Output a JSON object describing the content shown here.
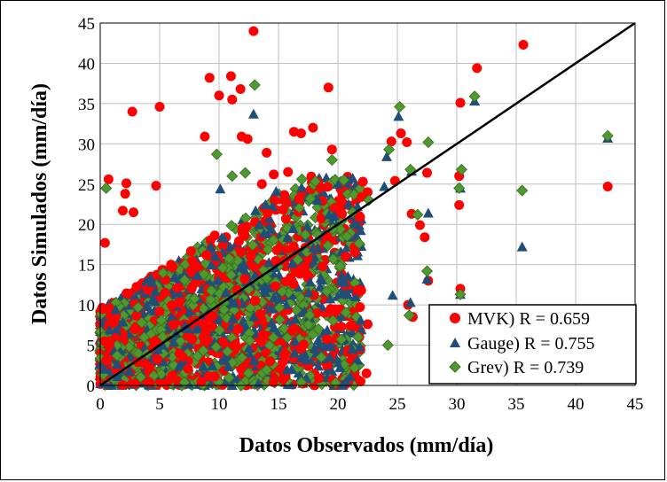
{
  "chart_data": {
    "type": "scatter",
    "title": "",
    "xlabel": "Datos Observados (mm/día)",
    "ylabel": "Datos Simulados (mm/día)",
    "xlim": [
      0,
      45
    ],
    "ylim": [
      0,
      45
    ],
    "xticks": [
      "0",
      "5",
      "10",
      "15",
      "20",
      "25",
      "30",
      "35",
      "40",
      "45"
    ],
    "yticks": [
      "0",
      "5",
      "10",
      "15",
      "20",
      "25",
      "30",
      "35",
      "40",
      "45"
    ],
    "grid": true,
    "legend_position": "bottom-right",
    "reference_line": {
      "name": "1:1 line",
      "x": [
        0,
        45
      ],
      "y": [
        0,
        45
      ]
    },
    "colors": {
      "mvk": "#ff0000",
      "gauge": "#1f4e79",
      "grev": "#4e9a2e"
    },
    "series": [
      {
        "name": "MVK) R = 0.659",
        "marker": "circle",
        "color": "#ff0000",
        "points": [
          [
            12.9,
            44
          ],
          [
            35.6,
            42.3
          ],
          [
            31.7,
            39.4
          ],
          [
            9.2,
            38.2
          ],
          [
            11,
            38.4
          ],
          [
            19.2,
            37
          ],
          [
            11.8,
            36.8
          ],
          [
            10,
            36
          ],
          [
            11.1,
            35.5
          ],
          [
            5,
            34.6
          ],
          [
            2.7,
            34
          ],
          [
            30.3,
            35.1
          ],
          [
            17.9,
            32
          ],
          [
            16.3,
            31.5
          ],
          [
            16.9,
            31.3
          ],
          [
            25.3,
            31.3
          ],
          [
            8.8,
            30.9
          ],
          [
            11.9,
            30.9
          ],
          [
            12.4,
            30.6
          ],
          [
            24.5,
            30.3
          ],
          [
            25.8,
            30.2
          ],
          [
            19.5,
            29.3
          ],
          [
            14,
            28.9
          ],
          [
            30.2,
            26
          ],
          [
            15.8,
            26.5
          ],
          [
            14.6,
            26.2
          ],
          [
            27.5,
            26.4
          ],
          [
            0.7,
            25.6
          ],
          [
            2.2,
            25.1
          ],
          [
            4.7,
            24.8
          ],
          [
            13.6,
            25
          ],
          [
            42.7,
            24.7
          ],
          [
            2.1,
            23.8
          ],
          [
            18.7,
            22.9
          ],
          [
            30.2,
            22.4
          ],
          [
            1.9,
            21.7
          ],
          [
            2.8,
            21.5
          ],
          [
            26.2,
            21.3
          ],
          [
            22.1,
            25.3
          ],
          [
            22.5,
            24
          ],
          [
            0.4,
            17.7
          ],
          [
            27.3,
            18.4
          ],
          [
            30.3,
            12
          ],
          [
            27.6,
            13
          ],
          [
            22.4,
            1.5
          ],
          [
            21.9,
            0.5
          ],
          [
            18.4,
            0.9
          ],
          [
            25.9,
            10
          ],
          [
            26.3,
            8.5
          ],
          [
            22.5,
            7.6
          ],
          [
            26.9,
            19.9
          ],
          [
            24.8,
            25.4
          ]
        ]
      },
      {
        "name": "Gauge) R = 0.755",
        "marker": "triangle",
        "color": "#1f4e79",
        "points": [
          [
            12.9,
            33.7
          ],
          [
            25.1,
            33.4
          ],
          [
            42.7,
            30.7
          ],
          [
            31.5,
            35.3
          ],
          [
            24.1,
            28.4
          ],
          [
            26.2,
            26.6
          ],
          [
            30.3,
            24.5
          ],
          [
            35.5,
            17.2
          ],
          [
            10.1,
            24.4
          ],
          [
            27.5,
            13.2
          ],
          [
            30.3,
            11.3
          ],
          [
            24.6,
            11.2
          ],
          [
            27.6,
            21.4
          ],
          [
            18.3,
            23
          ],
          [
            23.9,
            24.7
          ],
          [
            14.8,
            24.1
          ],
          [
            21.9,
            8.1
          ],
          [
            26.1,
            10.3
          ],
          [
            19.3,
            3.5
          ],
          [
            21.2,
            4.5
          ]
        ]
      },
      {
        "name": "Grev) R = 0.739",
        "marker": "diamond",
        "color": "#4e9a2e",
        "points": [
          [
            13,
            37.3
          ],
          [
            25.2,
            34.6
          ],
          [
            31.5,
            35.9
          ],
          [
            42.7,
            31
          ],
          [
            27.6,
            30.2
          ],
          [
            30.4,
            26.8
          ],
          [
            35.5,
            24.2
          ],
          [
            24.3,
            29.3
          ],
          [
            9.8,
            28.7
          ],
          [
            26.1,
            26.8
          ],
          [
            30.2,
            24.5
          ],
          [
            22.6,
            23
          ],
          [
            26.7,
            21.2
          ],
          [
            27.5,
            14.2
          ],
          [
            30.3,
            11.3
          ],
          [
            24.2,
            5
          ],
          [
            26,
            8.7
          ],
          [
            21.7,
            6
          ],
          [
            21.4,
            2.2
          ],
          [
            18.6,
            3.5
          ],
          [
            0.5,
            24.5
          ],
          [
            11.1,
            26
          ],
          [
            12.2,
            26.4
          ],
          [
            19.5,
            28
          ],
          [
            20.5,
            25.5
          ]
        ]
      }
    ]
  }
}
